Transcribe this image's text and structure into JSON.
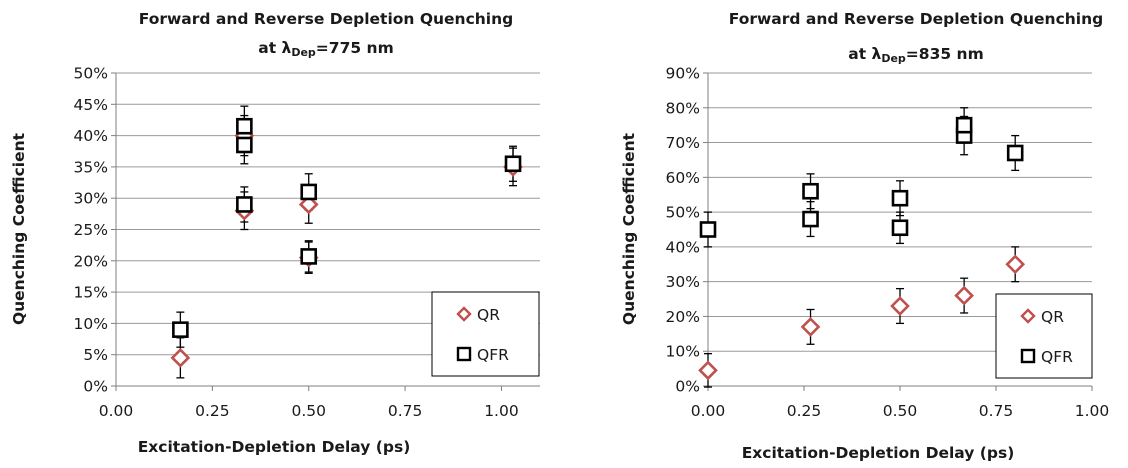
{
  "chart_data": [
    {
      "type": "scatter",
      "title": "Forward and Reverse Depletion Quenching",
      "subtitle": {
        "prefix": "at λ",
        "sub": "Dep",
        "suffix": "=775 nm"
      },
      "xlabel": "Excitation-Depletion Delay (ps)",
      "ylabel": "Quenching Coefficient",
      "xlim": [
        0,
        1.1
      ],
      "ylim": [
        0,
        0.5
      ],
      "xticks": [
        0,
        0.25,
        0.5,
        0.75,
        1.0
      ],
      "xtick_labels": [
        "0.00",
        "0.25",
        "0.50",
        "0.75",
        "1.00"
      ],
      "yticks": [
        0,
        0.05,
        0.1,
        0.15,
        0.2,
        0.25,
        0.3,
        0.35,
        0.4,
        0.45,
        0.5
      ],
      "ytick_labels": [
        "0%",
        "5%",
        "10%",
        "15%",
        "20%",
        "25%",
        "30%",
        "35%",
        "40%",
        "45%",
        "50%"
      ],
      "grid": true,
      "legend_position": "bottom-right",
      "series": [
        {
          "name": "QR",
          "marker": "diamond",
          "color": "#c0504d",
          "points": [
            {
              "x": 0.167,
              "y": 0.045,
              "err": 0.032
            },
            {
              "x": 0.333,
              "y": 0.28,
              "err": 0.03
            },
            {
              "x": 0.333,
              "y": 0.4,
              "err": 0.032
            },
            {
              "x": 0.5,
              "y": 0.29,
              "err": 0.03
            },
            {
              "x": 0.5,
              "y": 0.205,
              "err": 0.025
            },
            {
              "x": 1.03,
              "y": 0.35,
              "err": 0.03
            }
          ]
        },
        {
          "name": "QFR",
          "marker": "square",
          "color": "#000000",
          "points": [
            {
              "x": 0.167,
              "y": 0.09,
              "err": 0.028
            },
            {
              "x": 0.333,
              "y": 0.29,
              "err": 0.028
            },
            {
              "x": 0.333,
              "y": 0.385,
              "err": 0.03
            },
            {
              "x": 0.333,
              "y": 0.415,
              "err": 0.032
            },
            {
              "x": 0.5,
              "y": 0.31,
              "err": 0.029
            },
            {
              "x": 0.5,
              "y": 0.207,
              "err": 0.025
            },
            {
              "x": 1.03,
              "y": 0.355,
              "err": 0.028
            }
          ]
        }
      ]
    },
    {
      "type": "scatter",
      "title": "Forward and Reverse Depletion Quenching",
      "subtitle": {
        "prefix": "at λ",
        "sub": "Dep",
        "suffix": "=835 nm"
      },
      "xlabel": "Excitation-Depletion Delay (ps)",
      "ylabel": "Quenching Coefficient",
      "xlim": [
        0,
        1.0
      ],
      "ylim": [
        0,
        0.9
      ],
      "xticks": [
        0,
        0.25,
        0.5,
        0.75,
        1.0
      ],
      "xtick_labels": [
        "0.00",
        "0.25",
        "0.50",
        "0.75",
        "1.00"
      ],
      "yticks": [
        0,
        0.1,
        0.2,
        0.3,
        0.4,
        0.5,
        0.6,
        0.7,
        0.8,
        0.9
      ],
      "ytick_labels": [
        "0%",
        "10%",
        "20%",
        "30%",
        "40%",
        "50%",
        "60%",
        "70%",
        "80%",
        "90%"
      ],
      "grid": true,
      "legend_position": "bottom-right",
      "series": [
        {
          "name": "QR",
          "marker": "diamond",
          "color": "#c0504d",
          "points": [
            {
              "x": 0.0,
              "y": 0.045,
              "err": 0.048
            },
            {
              "x": 0.267,
              "y": 0.17,
              "err": 0.05
            },
            {
              "x": 0.5,
              "y": 0.23,
              "err": 0.05
            },
            {
              "x": 0.667,
              "y": 0.26,
              "err": 0.05
            },
            {
              "x": 0.8,
              "y": 0.35,
              "err": 0.05
            }
          ]
        },
        {
          "name": "QFR",
          "marker": "square",
          "color": "#000000",
          "points": [
            {
              "x": 0.0,
              "y": 0.45,
              "err": 0.05
            },
            {
              "x": 0.267,
              "y": 0.48,
              "err": 0.05
            },
            {
              "x": 0.267,
              "y": 0.56,
              "err": 0.05
            },
            {
              "x": 0.5,
              "y": 0.455,
              "err": 0.045
            },
            {
              "x": 0.5,
              "y": 0.54,
              "err": 0.05
            },
            {
              "x": 0.667,
              "y": 0.72,
              "err": 0.055
            },
            {
              "x": 0.667,
              "y": 0.75,
              "err": 0.05
            },
            {
              "x": 0.8,
              "y": 0.67,
              "err": 0.05
            }
          ]
        }
      ]
    }
  ]
}
